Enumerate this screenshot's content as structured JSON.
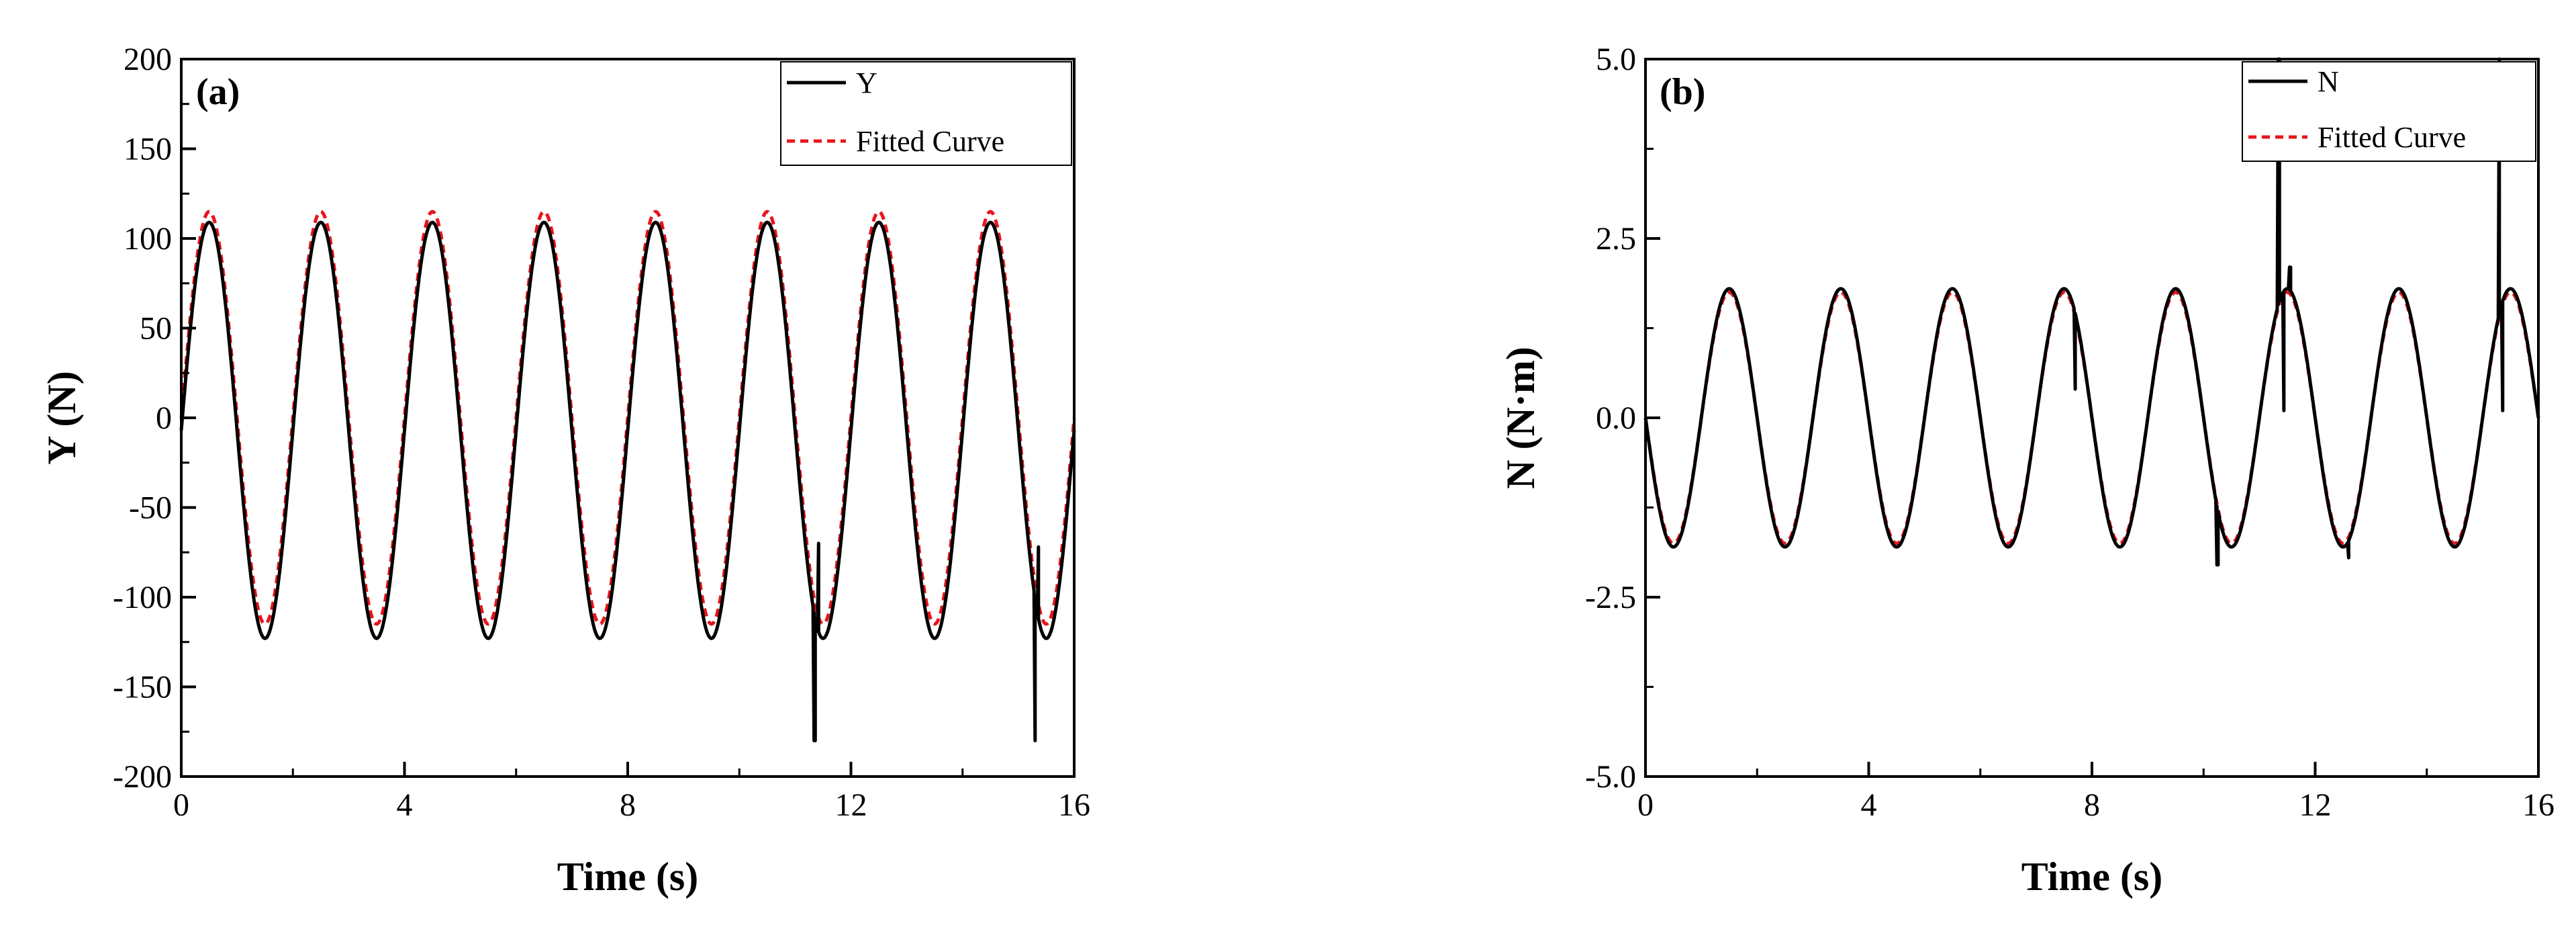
{
  "chart_data": [
    {
      "type": "line",
      "panel_label": "(a)",
      "xlabel": "Time (s)",
      "ylabel": "Y (N)",
      "xlim": [
        0,
        16
      ],
      "ylim": [
        -200,
        200
      ],
      "x_ticks": [
        0,
        4,
        8,
        12,
        16
      ],
      "y_ticks": [
        -200,
        -150,
        -100,
        -50,
        0,
        50,
        100,
        150,
        200
      ],
      "legend": {
        "position": "top-right",
        "entries": [
          "Y",
          "Fitted Curve"
        ]
      },
      "grid": false,
      "series": [
        {
          "name": "Y",
          "style": "solid",
          "color": "#000000",
          "model": {
            "offset": -7,
            "amplitude": 116,
            "period_s": 2.0,
            "phase_rad": 0.0,
            "sample_step_s": 0.02
          },
          "spikes": [
            {
              "t": 11.35,
              "value": -180
            },
            {
              "t": 11.42,
              "value": -70
            },
            {
              "t": 15.3,
              "value": -180
            },
            {
              "t": 15.36,
              "value": -72
            }
          ]
        },
        {
          "name": "Fitted Curve",
          "style": "dashed",
          "color": "#e8141b",
          "model": {
            "offset": 0,
            "amplitude": 115,
            "period_s": 2.0,
            "phase_rad": 0.0,
            "sample_step_s": 0.02
          }
        }
      ]
    },
    {
      "type": "line",
      "panel_label": "(b)",
      "xlabel": "Time (s)",
      "ylabel": "N (N·m)",
      "xlim": [
        0,
        16
      ],
      "ylim": [
        -5.0,
        5.0
      ],
      "x_ticks": [
        0,
        4,
        8,
        12,
        16
      ],
      "y_ticks": [
        -5.0,
        -2.5,
        0.0,
        2.5,
        5.0
      ],
      "y_tick_labels": [
        "-5.0",
        "-2.5",
        "0.0",
        "2.5",
        "5.0"
      ],
      "legend": {
        "position": "top-right",
        "entries": [
          "N",
          "Fitted Curve"
        ]
      },
      "grid": false,
      "series": [
        {
          "name": "N",
          "style": "solid",
          "color": "#000000",
          "model": {
            "offset": 0,
            "amplitude": 1.8,
            "period_s": 2.0,
            "phase_rad": 3.14159,
            "sample_step_s": 0.02
          },
          "spikes": [
            {
              "t": 1.75,
              "value": 1.9
            },
            {
              "t": 7.7,
              "value": 0.4
            },
            {
              "t": 10.25,
              "value": -2.05
            },
            {
              "t": 11.35,
              "value": 5.0
            },
            {
              "t": 11.45,
              "value": 0.1
            },
            {
              "t": 11.55,
              "value": 2.1
            },
            {
              "t": 12.6,
              "value": -1.95
            },
            {
              "t": 15.3,
              "value": 5.0
            },
            {
              "t": 15.37,
              "value": 0.1
            }
          ]
        },
        {
          "name": "Fitted Curve",
          "style": "dashed",
          "color": "#e8141b",
          "model": {
            "offset": 0,
            "amplitude": 1.75,
            "period_s": 2.0,
            "phase_rad": 3.14159,
            "sample_step_s": 0.02
          }
        }
      ]
    }
  ]
}
